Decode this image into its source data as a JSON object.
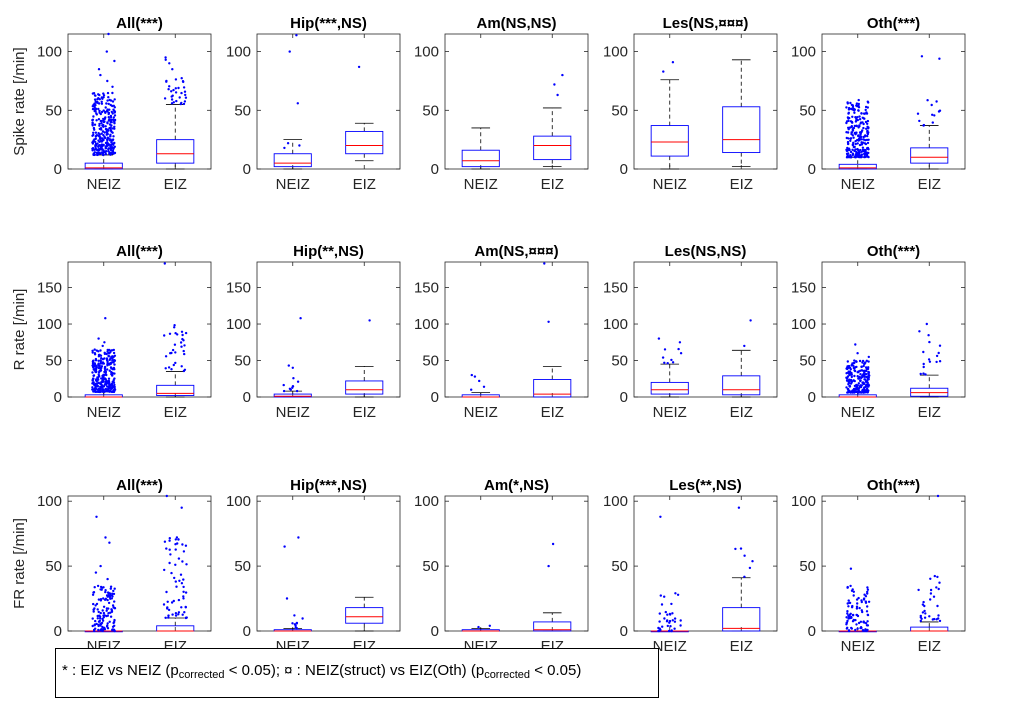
{
  "colors": {
    "box": "#0000ff",
    "median": "#ff0000",
    "whisker": "#000000",
    "outlier": "#0000ff",
    "axis": "#262626"
  },
  "legend": {
    "part1": "* : EIZ vs NEIZ (p",
    "sub1": "corrected",
    "part2": " < 0.05); ¤ : NEIZ(struct) vs EIZ(Oth) (p",
    "sub2": "corrected",
    "part3": " < 0.05)"
  },
  "chart_data": [
    {
      "type": "box",
      "title": "All(***)",
      "ylabel": "Spike rate [/min]",
      "categories": [
        "NEIZ",
        "EIZ"
      ],
      "ylim": [
        0,
        115
      ],
      "yticks": [
        0,
        50,
        100
      ],
      "boxes": [
        {
          "q1": 0,
          "median": 1,
          "q3": 5,
          "whisker_low": 0,
          "whisker_high": 12
        },
        {
          "q1": 5,
          "median": 13,
          "q3": 25,
          "whisker_low": 0,
          "whisker_high": 55
        }
      ],
      "outliers": [
        {
          "count": 300,
          "min": 12,
          "max": 65,
          "extra": [
            70,
            75,
            80,
            85,
            92,
            100,
            115
          ]
        },
        {
          "count": 30,
          "min": 55,
          "max": 78,
          "extra": [
            85,
            90,
            93,
            95
          ]
        }
      ]
    },
    {
      "type": "box",
      "title": "Hip(***,NS)",
      "ylabel": "",
      "categories": [
        "NEIZ",
        "EIZ"
      ],
      "ylim": [
        0,
        115
      ],
      "yticks": [
        0,
        50,
        100
      ],
      "boxes": [
        {
          "q1": 2,
          "median": 5,
          "q3": 13,
          "whisker_low": 0,
          "whisker_high": 25
        },
        {
          "q1": 13,
          "median": 20,
          "q3": 32,
          "whisker_low": 7,
          "whisker_high": 39
        }
      ],
      "outliers": [
        {
          "count": 0,
          "min": 0,
          "max": 0,
          "extra": [
            18,
            20,
            22,
            56,
            100,
            114
          ]
        },
        {
          "count": 0,
          "min": 0,
          "max": 0,
          "extra": [
            87
          ]
        }
      ]
    },
    {
      "type": "box",
      "title": "Am(NS,NS)",
      "ylabel": "",
      "categories": [
        "NEIZ",
        "EIZ"
      ],
      "ylim": [
        0,
        115
      ],
      "yticks": [
        0,
        50,
        100
      ],
      "boxes": [
        {
          "q1": 2,
          "median": 7,
          "q3": 16,
          "whisker_low": 0,
          "whisker_high": 35
        },
        {
          "q1": 8,
          "median": 20,
          "q3": 28,
          "whisker_low": 2,
          "whisker_high": 52
        }
      ],
      "outliers": [
        {
          "count": 0,
          "min": 0,
          "max": 0,
          "extra": []
        },
        {
          "count": 0,
          "min": 0,
          "max": 0,
          "extra": [
            63,
            72,
            80
          ]
        }
      ]
    },
    {
      "type": "box",
      "title": "Les(NS,¤¤¤)",
      "ylabel": "",
      "categories": [
        "NEIZ",
        "EIZ"
      ],
      "ylim": [
        0,
        115
      ],
      "yticks": [
        0,
        50,
        100
      ],
      "boxes": [
        {
          "q1": 11,
          "median": 23,
          "q3": 37,
          "whisker_low": 0,
          "whisker_high": 76
        },
        {
          "q1": 14,
          "median": 25,
          "q3": 53,
          "whisker_low": 2,
          "whisker_high": 93
        }
      ],
      "outliers": [
        {
          "count": 0,
          "min": 0,
          "max": 0,
          "extra": [
            83,
            91
          ]
        },
        {
          "count": 0,
          "min": 0,
          "max": 0,
          "extra": []
        }
      ]
    },
    {
      "type": "box",
      "title": "Oth(***)",
      "ylabel": "",
      "categories": [
        "NEIZ",
        "EIZ"
      ],
      "ylim": [
        0,
        115
      ],
      "yticks": [
        0,
        50,
        100
      ],
      "boxes": [
        {
          "q1": 0,
          "median": 1,
          "q3": 4,
          "whisker_low": 0,
          "whisker_high": 10
        },
        {
          "q1": 5,
          "median": 10,
          "q3": 18,
          "whisker_low": 0,
          "whisker_high": 37
        }
      ],
      "outliers": [
        {
          "count": 250,
          "min": 10,
          "max": 59,
          "extra": []
        },
        {
          "count": 12,
          "min": 37,
          "max": 62,
          "extra": [
            94,
            96
          ]
        }
      ]
    },
    {
      "type": "box",
      "title": "All(***)",
      "ylabel": "R rate [/min]",
      "categories": [
        "NEIZ",
        "EIZ"
      ],
      "ylim": [
        0,
        185
      ],
      "yticks": [
        0,
        50,
        100,
        150
      ],
      "boxes": [
        {
          "q1": 0,
          "median": 0,
          "q3": 3,
          "whisker_low": 0,
          "whisker_high": 7
        },
        {
          "q1": 2,
          "median": 5,
          "q3": 16,
          "whisker_low": 0,
          "whisker_high": 35
        }
      ],
      "outliers": [
        {
          "count": 300,
          "min": 7,
          "max": 65,
          "extra": [
            70,
            75,
            80,
            108
          ]
        },
        {
          "count": 30,
          "min": 35,
          "max": 105,
          "extra": [
            183
          ]
        }
      ]
    },
    {
      "type": "box",
      "title": "Hip(**,NS)",
      "ylabel": "",
      "categories": [
        "NEIZ",
        "EIZ"
      ],
      "ylim": [
        0,
        185
      ],
      "yticks": [
        0,
        50,
        100,
        150
      ],
      "boxes": [
        {
          "q1": 0,
          "median": 1,
          "q3": 4,
          "whisker_low": 0,
          "whisker_high": 8
        },
        {
          "q1": 4,
          "median": 10,
          "q3": 22,
          "whisker_low": 0,
          "whisker_high": 42
        }
      ],
      "outliers": [
        {
          "count": 10,
          "min": 8,
          "max": 30,
          "extra": [
            40,
            43,
            108
          ]
        },
        {
          "count": 0,
          "min": 0,
          "max": 0,
          "extra": [
            105
          ]
        }
      ]
    },
    {
      "type": "box",
      "title": "Am(NS,¤¤¤)",
      "ylabel": "",
      "categories": [
        "NEIZ",
        "EIZ"
      ],
      "ylim": [
        0,
        185
      ],
      "yticks": [
        0,
        50,
        100,
        150
      ],
      "boxes": [
        {
          "q1": 0,
          "median": 0,
          "q3": 3,
          "whisker_low": 0,
          "whisker_high": 6
        },
        {
          "q1": 0,
          "median": 4,
          "q3": 24,
          "whisker_low": 0,
          "whisker_high": 42
        }
      ],
      "outliers": [
        {
          "count": 0,
          "min": 0,
          "max": 0,
          "extra": [
            10,
            14,
            22,
            28,
            30
          ]
        },
        {
          "count": 0,
          "min": 0,
          "max": 0,
          "extra": [
            103,
            183
          ]
        }
      ]
    },
    {
      "type": "box",
      "title": "Les(NS,NS)",
      "ylabel": "",
      "categories": [
        "NEIZ",
        "EIZ"
      ],
      "ylim": [
        0,
        185
      ],
      "yticks": [
        0,
        50,
        100,
        150
      ],
      "boxes": [
        {
          "q1": 4,
          "median": 10,
          "q3": 20,
          "whisker_low": 0,
          "whisker_high": 45
        },
        {
          "q1": 3,
          "median": 10,
          "q3": 29,
          "whisker_low": 0,
          "whisker_high": 64
        }
      ],
      "outliers": [
        {
          "count": 8,
          "min": 45,
          "max": 66,
          "extra": [
            75,
            80
          ]
        },
        {
          "count": 0,
          "min": 0,
          "max": 0,
          "extra": [
            70,
            105
          ]
        }
      ]
    },
    {
      "type": "box",
      "title": "Oth(***)",
      "ylabel": "",
      "categories": [
        "NEIZ",
        "EIZ"
      ],
      "ylim": [
        0,
        185
      ],
      "yticks": [
        0,
        50,
        100,
        150
      ],
      "boxes": [
        {
          "q1": 0,
          "median": 0,
          "q3": 3,
          "whisker_low": 0,
          "whisker_high": 6
        },
        {
          "q1": 1,
          "median": 6,
          "q3": 12,
          "whisker_low": 0,
          "whisker_high": 30
        }
      ],
      "outliers": [
        {
          "count": 230,
          "min": 6,
          "max": 50,
          "extra": [
            55,
            60,
            72
          ]
        },
        {
          "count": 15,
          "min": 30,
          "max": 85,
          "extra": [
            90,
            100
          ]
        }
      ]
    },
    {
      "type": "box",
      "title": "All(***)",
      "ylabel": "FR rate [/min]",
      "categories": [
        "NEIZ",
        "EIZ"
      ],
      "ylim": [
        0,
        104
      ],
      "yticks": [
        0,
        50,
        100
      ],
      "boxes": [
        {
          "q1": 0,
          "median": 0,
          "q3": 0,
          "whisker_low": 0,
          "whisker_high": 0
        },
        {
          "q1": 0,
          "median": 0,
          "q3": 4,
          "whisker_low": 0,
          "whisker_high": 10
        }
      ],
      "outliers": [
        {
          "count": 120,
          "min": 0,
          "max": 35,
          "extra": [
            40,
            45,
            50,
            68,
            72,
            88
          ]
        },
        {
          "count": 60,
          "min": 10,
          "max": 75,
          "extra": [
            95,
            104
          ]
        }
      ]
    },
    {
      "type": "box",
      "title": "Hip(***,NS)",
      "ylabel": "",
      "categories": [
        "NEIZ",
        "EIZ"
      ],
      "ylim": [
        0,
        104
      ],
      "yticks": [
        0,
        50,
        100
      ],
      "boxes": [
        {
          "q1": 0,
          "median": 0,
          "q3": 1,
          "whisker_low": 0,
          "whisker_high": 2
        },
        {
          "q1": 6,
          "median": 11,
          "q3": 18,
          "whisker_low": 0,
          "whisker_high": 26
        }
      ],
      "outliers": [
        {
          "count": 8,
          "min": 2,
          "max": 10,
          "extra": [
            12,
            25,
            65,
            72
          ]
        },
        {
          "count": 0,
          "min": 0,
          "max": 0,
          "extra": []
        }
      ]
    },
    {
      "type": "box",
      "title": "Am(*,NS)",
      "ylabel": "",
      "categories": [
        "NEIZ",
        "EIZ"
      ],
      "ylim": [
        0,
        104
      ],
      "yticks": [
        0,
        50,
        100
      ],
      "boxes": [
        {
          "q1": 0,
          "median": 0,
          "q3": 1,
          "whisker_low": 0,
          "whisker_high": 2
        },
        {
          "q1": 0,
          "median": 1,
          "q3": 7,
          "whisker_low": 0,
          "whisker_high": 14
        }
      ],
      "outliers": [
        {
          "count": 0,
          "min": 0,
          "max": 0,
          "extra": [
            3,
            4
          ]
        },
        {
          "count": 0,
          "min": 0,
          "max": 0,
          "extra": [
            50,
            67
          ]
        }
      ]
    },
    {
      "type": "box",
      "title": "Les(**,NS)",
      "ylabel": "",
      "categories": [
        "NEIZ",
        "EIZ"
      ],
      "ylim": [
        0,
        104
      ],
      "yticks": [
        0,
        50,
        100
      ],
      "boxes": [
        {
          "q1": 0,
          "median": 0,
          "q3": 0,
          "whisker_low": 0,
          "whisker_high": 0
        },
        {
          "q1": 0,
          "median": 2,
          "q3": 18,
          "whisker_low": 0,
          "whisker_high": 41
        }
      ],
      "outliers": [
        {
          "count": 35,
          "min": 0,
          "max": 30,
          "extra": [
            88
          ]
        },
        {
          "count": 6,
          "min": 41,
          "max": 72,
          "extra": [
            95
          ]
        }
      ]
    },
    {
      "type": "box",
      "title": "Oth(***)",
      "ylabel": "",
      "categories": [
        "NEIZ",
        "EIZ"
      ],
      "ylim": [
        0,
        104
      ],
      "yticks": [
        0,
        50,
        100
      ],
      "boxes": [
        {
          "q1": 0,
          "median": 0,
          "q3": 0,
          "whisker_low": 0,
          "whisker_high": 0
        },
        {
          "q1": 0,
          "median": 0,
          "q3": 3,
          "whisker_low": 0,
          "whisker_high": 7
        }
      ],
      "outliers": [
        {
          "count": 90,
          "min": 0,
          "max": 35,
          "extra": [
            48
          ]
        },
        {
          "count": 30,
          "min": 7,
          "max": 43,
          "extra": [
            104
          ]
        }
      ]
    }
  ]
}
